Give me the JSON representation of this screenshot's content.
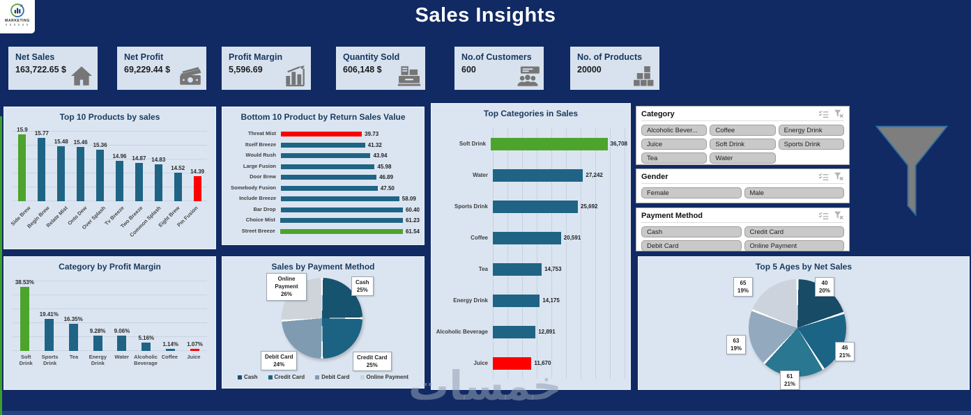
{
  "header": {
    "title": "Sales Insights",
    "logo_text": "MARKETING"
  },
  "colors": {
    "navy": "#112a63",
    "panel_bg": "#dbe5f1",
    "bar_teal": "#1f6485",
    "accent_green": "#4da42c",
    "accent_red": "#ff0000"
  },
  "kpi_cards": [
    {
      "label": "Net Sales",
      "value": "163,722.65 $",
      "icon": "home-icon"
    },
    {
      "label": "Net Profit",
      "value": "69,229.44 $",
      "icon": "money-icon"
    },
    {
      "label": "Profit Margin",
      "value": "5,596.69",
      "icon": "chart-growth-icon"
    },
    {
      "label": "Quantity Sold",
      "value": "606,148 $",
      "icon": "cash-register-icon"
    },
    {
      "label": "No.of Customers",
      "value": "600",
      "icon": "customers-icon"
    },
    {
      "label": "No. of Products",
      "value": "20000",
      "icon": "products-icon"
    }
  ],
  "slicers": [
    {
      "title": "Category",
      "items": [
        "Alcoholic Bever...",
        "Coffee",
        "Energy Drink",
        "Juice",
        "Soft Drink",
        "Sports Drink",
        "Tea",
        "Water"
      ]
    },
    {
      "title": "Gender",
      "items": [
        "Female",
        "Male"
      ]
    },
    {
      "title": "Payment Method",
      "items": [
        "Cash",
        "Credit Card",
        "Debit Card",
        "Online Payment"
      ]
    }
  ],
  "watermark": {
    "text": "خمسات"
  },
  "chart_data": [
    {
      "id": "top10_products",
      "type": "bar",
      "title": "Top 10 Products by sales",
      "categories": [
        "Side Brew",
        "Begin Brew",
        "Relate Mist",
        "Onto Dew",
        "Over Splash",
        "Tv Breeze",
        "Two Breeze",
        "Common Splash",
        "Eight Brew",
        "Pm Fusion"
      ],
      "values": [
        15.9,
        15.77,
        15.48,
        15.46,
        15.36,
        14.96,
        14.87,
        14.83,
        14.52,
        14.39
      ],
      "value_labels": [
        "15.9",
        "15.77",
        "15.48",
        "15.46",
        "15.36",
        "14.96",
        "14.87",
        "14.83",
        "14.52",
        "14.39"
      ],
      "ylim": [
        13.5,
        16
      ],
      "highlight": {
        "first": "green",
        "last": "red"
      }
    },
    {
      "id": "bottom10_returns",
      "type": "barh",
      "title": "Bottom 10 Product by Return Sales Value",
      "categories": [
        "Threat Mist",
        "Itself Breeze",
        "Would Rush",
        "Large Fusion",
        "Door Brew",
        "Somebody Fusion",
        "Include Breeze",
        "Bar Drop",
        "Choice Mist",
        "Street Breeze"
      ],
      "values": [
        39.73,
        41.32,
        43.94,
        45.98,
        46.89,
        47.5,
        58.09,
        60.4,
        61.23,
        61.54
      ],
      "value_labels": [
        "39.73",
        "41.32",
        "43.94",
        "45.98",
        "46.89",
        "47.50",
        "58.09",
        "60.40",
        "61.23",
        "61.54"
      ],
      "xlim": [
        0,
        65
      ],
      "gridlines": false,
      "highlight": {
        "first": "red",
        "last": "green"
      }
    },
    {
      "id": "top_categories",
      "type": "barh",
      "title": "Top Categories in Sales",
      "categories": [
        "Soft Drink",
        "Water",
        "Sports Drink",
        "Coffee",
        "Tea",
        "Energy Drink",
        "Alcoholic Beverage",
        "Juice"
      ],
      "values": [
        36708,
        27242,
        25692,
        20591,
        14753,
        14175,
        12891,
        11670
      ],
      "value_labels": [
        "36,708",
        "27,242",
        "25,692",
        "20,591",
        "14,753",
        "14,175",
        "12,891",
        "11,670"
      ],
      "xlim": [
        0,
        40000
      ],
      "gridlines": true,
      "highlight": {
        "first": "green",
        "last": "red"
      }
    },
    {
      "id": "category_profit_margin",
      "type": "bar",
      "title": "Category by Profit Margin",
      "categories": [
        "Soft Drink",
        "Sports Drink",
        "Tea",
        "Energy Drink",
        "Water",
        "Alcoholic Beverage",
        "Coffee",
        "Juice"
      ],
      "values": [
        38.53,
        19.41,
        16.35,
        9.28,
        9.06,
        5.16,
        1.14,
        1.07
      ],
      "value_labels": [
        "38.53%",
        "19.41%",
        "16.35%",
        "9.28%",
        "9.06%",
        "5.16%",
        "1.14%",
        "1.07%"
      ],
      "ylim": [
        0,
        42
      ],
      "highlight": {
        "first": "green",
        "last": "red"
      }
    },
    {
      "id": "payment_pie",
      "type": "pie",
      "title": "Sales by Payment Method",
      "labels": [
        "Cash",
        "Credit Card",
        "Debit Card",
        "Online Payment"
      ],
      "values": [
        25,
        25,
        24,
        26
      ],
      "value_labels": [
        "25%",
        "25%",
        "24%",
        "26%"
      ],
      "colors": [
        "#16536f",
        "#1b6283",
        "#7f9bb1",
        "#ced4da"
      ],
      "legend": [
        "Cash",
        "Credit Card",
        "Debit Card",
        "Online Payment"
      ],
      "legend_position": "bottom"
    },
    {
      "id": "ages_pie",
      "type": "pie",
      "title": "Top 5 Ages by Net Sales",
      "labels": [
        "40",
        "46",
        "61",
        "63",
        "65"
      ],
      "values": [
        20,
        21,
        21,
        19,
        19
      ],
      "value_labels": [
        "20%",
        "21%",
        "21%",
        "19%",
        "19%"
      ],
      "colors": [
        "#174b66",
        "#1c6486",
        "#2a7791",
        "#93a9bd",
        "#ccd3dc"
      ]
    }
  ]
}
